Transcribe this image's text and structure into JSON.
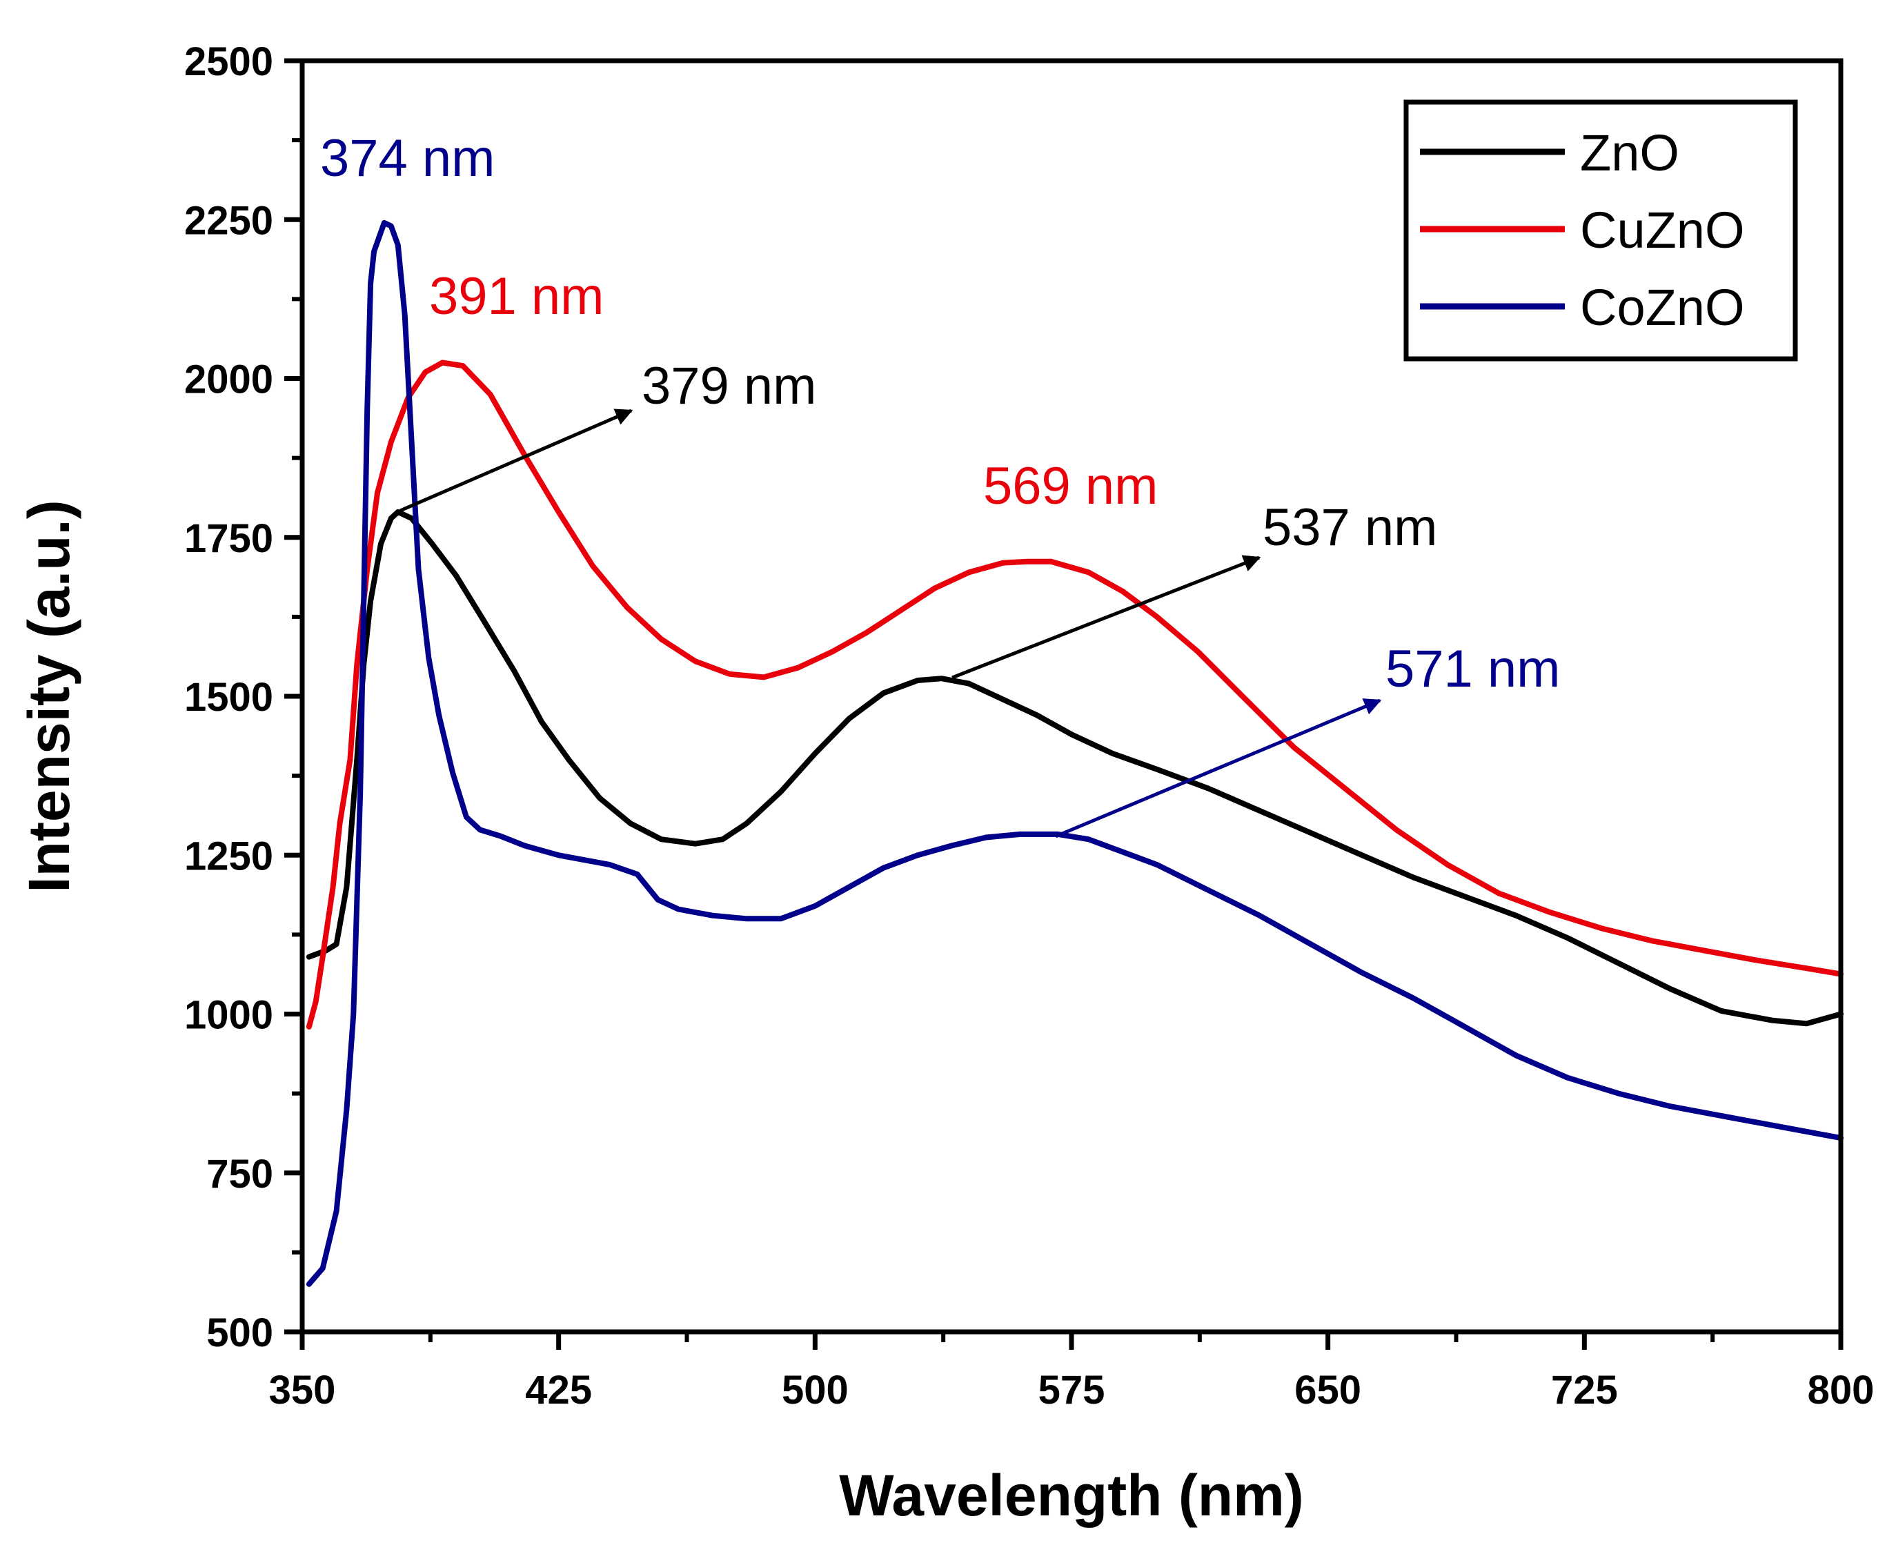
{
  "chart_data": {
    "type": "line",
    "xlabel": "Wavelength (nm)",
    "ylabel": "Intensity (a.u.)",
    "xlim": [
      350,
      800
    ],
    "ylim": [
      500,
      2500
    ],
    "xticks": [
      350,
      425,
      500,
      575,
      650,
      725,
      800
    ],
    "yticks": [
      500,
      750,
      1000,
      1250,
      1500,
      1750,
      2000,
      2250,
      2500
    ],
    "grid": false,
    "legend_position": "top-right",
    "series": [
      {
        "name": "ZnO",
        "color": "#000000",
        "points": [
          [
            352,
            1090
          ],
          [
            357,
            1100
          ],
          [
            360,
            1110
          ],
          [
            363,
            1200
          ],
          [
            366,
            1400
          ],
          [
            368,
            1550
          ],
          [
            370,
            1650
          ],
          [
            373,
            1740
          ],
          [
            376,
            1780
          ],
          [
            378,
            1790
          ],
          [
            382,
            1780
          ],
          [
            388,
            1740
          ],
          [
            395,
            1690
          ],
          [
            403,
            1620
          ],
          [
            412,
            1540
          ],
          [
            420,
            1460
          ],
          [
            428,
            1400
          ],
          [
            437,
            1340
          ],
          [
            446,
            1300
          ],
          [
            455,
            1275
          ],
          [
            465,
            1268
          ],
          [
            473,
            1275
          ],
          [
            480,
            1300
          ],
          [
            490,
            1350
          ],
          [
            500,
            1410
          ],
          [
            510,
            1465
          ],
          [
            520,
            1505
          ],
          [
            530,
            1525
          ],
          [
            537,
            1528
          ],
          [
            545,
            1520
          ],
          [
            555,
            1495
          ],
          [
            565,
            1470
          ],
          [
            575,
            1440
          ],
          [
            587,
            1410
          ],
          [
            600,
            1385
          ],
          [
            615,
            1355
          ],
          [
            630,
            1320
          ],
          [
            645,
            1285
          ],
          [
            660,
            1250
          ],
          [
            675,
            1215
          ],
          [
            690,
            1185
          ],
          [
            705,
            1155
          ],
          [
            720,
            1120
          ],
          [
            735,
            1080
          ],
          [
            750,
            1040
          ],
          [
            765,
            1005
          ],
          [
            780,
            990
          ],
          [
            790,
            985
          ],
          [
            800,
            1000
          ]
        ]
      },
      {
        "name": "CuZnO",
        "color": "#e8000b",
        "points": [
          [
            352,
            980
          ],
          [
            354,
            1020
          ],
          [
            356,
            1090
          ],
          [
            359,
            1200
          ],
          [
            361,
            1300
          ],
          [
            364,
            1400
          ],
          [
            366,
            1550
          ],
          [
            369,
            1700
          ],
          [
            372,
            1820
          ],
          [
            376,
            1900
          ],
          [
            381,
            1970
          ],
          [
            386,
            2010
          ],
          [
            391,
            2025
          ],
          [
            397,
            2020
          ],
          [
            405,
            1975
          ],
          [
            415,
            1880
          ],
          [
            425,
            1790
          ],
          [
            435,
            1705
          ],
          [
            445,
            1640
          ],
          [
            455,
            1590
          ],
          [
            465,
            1555
          ],
          [
            475,
            1535
          ],
          [
            485,
            1530
          ],
          [
            495,
            1545
          ],
          [
            505,
            1570
          ],
          [
            515,
            1600
          ],
          [
            525,
            1635
          ],
          [
            535,
            1670
          ],
          [
            545,
            1695
          ],
          [
            555,
            1710
          ],
          [
            562,
            1712
          ],
          [
            569,
            1712
          ],
          [
            580,
            1695
          ],
          [
            590,
            1665
          ],
          [
            600,
            1625
          ],
          [
            612,
            1570
          ],
          [
            625,
            1500
          ],
          [
            640,
            1420
          ],
          [
            655,
            1355
          ],
          [
            670,
            1290
          ],
          [
            685,
            1235
          ],
          [
            700,
            1190
          ],
          [
            715,
            1160
          ],
          [
            730,
            1135
          ],
          [
            745,
            1115
          ],
          [
            760,
            1100
          ],
          [
            775,
            1085
          ],
          [
            790,
            1072
          ],
          [
            800,
            1063
          ]
        ]
      },
      {
        "name": "CoZnO",
        "color": "#00008b",
        "points": [
          [
            352,
            575
          ],
          [
            356,
            600
          ],
          [
            360,
            690
          ],
          [
            363,
            850
          ],
          [
            365,
            1000
          ],
          [
            367,
            1350
          ],
          [
            368,
            1650
          ],
          [
            369,
            1950
          ],
          [
            370,
            2150
          ],
          [
            371,
            2200
          ],
          [
            374,
            2245
          ],
          [
            376,
            2240
          ],
          [
            378,
            2210
          ],
          [
            380,
            2100
          ],
          [
            382,
            1900
          ],
          [
            384,
            1700
          ],
          [
            387,
            1560
          ],
          [
            390,
            1470
          ],
          [
            394,
            1380
          ],
          [
            398,
            1310
          ],
          [
            402,
            1290
          ],
          [
            408,
            1280
          ],
          [
            415,
            1265
          ],
          [
            425,
            1250
          ],
          [
            440,
            1235
          ],
          [
            448,
            1220
          ],
          [
            454,
            1180
          ],
          [
            460,
            1165
          ],
          [
            470,
            1155
          ],
          [
            480,
            1150
          ],
          [
            490,
            1150
          ],
          [
            500,
            1170
          ],
          [
            510,
            1200
          ],
          [
            520,
            1230
          ],
          [
            530,
            1250
          ],
          [
            540,
            1265
          ],
          [
            550,
            1278
          ],
          [
            560,
            1283
          ],
          [
            571,
            1283
          ],
          [
            580,
            1275
          ],
          [
            590,
            1255
          ],
          [
            600,
            1235
          ],
          [
            615,
            1195
          ],
          [
            630,
            1155
          ],
          [
            645,
            1110
          ],
          [
            660,
            1065
          ],
          [
            675,
            1025
          ],
          [
            690,
            980
          ],
          [
            705,
            935
          ],
          [
            720,
            900
          ],
          [
            735,
            875
          ],
          [
            750,
            855
          ],
          [
            765,
            840
          ],
          [
            780,
            825
          ],
          [
            800,
            805
          ]
        ]
      }
    ],
    "annotations": [
      {
        "text": "374 nm",
        "color": "#00008b",
        "series": "CoZnO",
        "peak_x": 374
      },
      {
        "text": "391 nm",
        "color": "#e8000b",
        "series": "CuZnO",
        "peak_x": 391
      },
      {
        "text": "379 nm",
        "color": "#000000",
        "series": "ZnO",
        "peak_x": 379,
        "arrow": true
      },
      {
        "text": "569 nm",
        "color": "#e8000b",
        "series": "CuZnO",
        "peak_x": 569
      },
      {
        "text": "537 nm",
        "color": "#000000",
        "series": "ZnO",
        "peak_x": 537,
        "arrow": true
      },
      {
        "text": "571 nm",
        "color": "#00008b",
        "series": "CoZnO",
        "peak_x": 571,
        "arrow": true
      }
    ]
  }
}
